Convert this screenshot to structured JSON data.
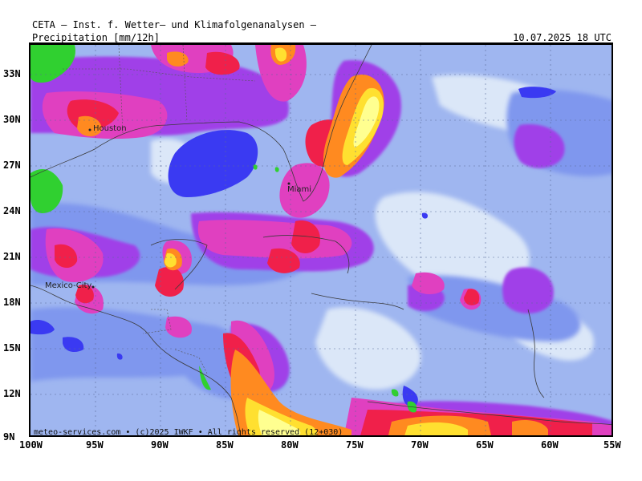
{
  "header": {
    "institute": "CETA – Inst. f. Wetter– und Klimafolgenanalysen –",
    "parameter": "Precipitation [mm/12h]",
    "valid_time": "10.07.2025 18 UTC"
  },
  "map": {
    "lat_labels": [
      "33N",
      "30N",
      "27N",
      "24N",
      "21N",
      "18N",
      "15N",
      "12N",
      "9N"
    ],
    "lon_labels": [
      "100W",
      "95W",
      "90W",
      "85W",
      "80W",
      "75W",
      "70W",
      "65W",
      "60W",
      "55W"
    ],
    "cities": [
      "Houston",
      "Miami",
      "Mexico-City"
    ],
    "copyright": "meteo-services.com • (c)2025 IWKF • All rights reserved (12+030)",
    "colors": {
      "background_light_blue": "#9fb6f0",
      "pale": "#dbe7f8",
      "mid_blue": "#7f97ee",
      "blue_patch": "#3a3af2",
      "violet": "#a040e8",
      "magenta": "#e040c0",
      "red": "#f0204a",
      "orange": "#ff8a20",
      "yellow": "#ffe030",
      "pale_yellow": "#ffff90",
      "green": "#30d030"
    }
  }
}
